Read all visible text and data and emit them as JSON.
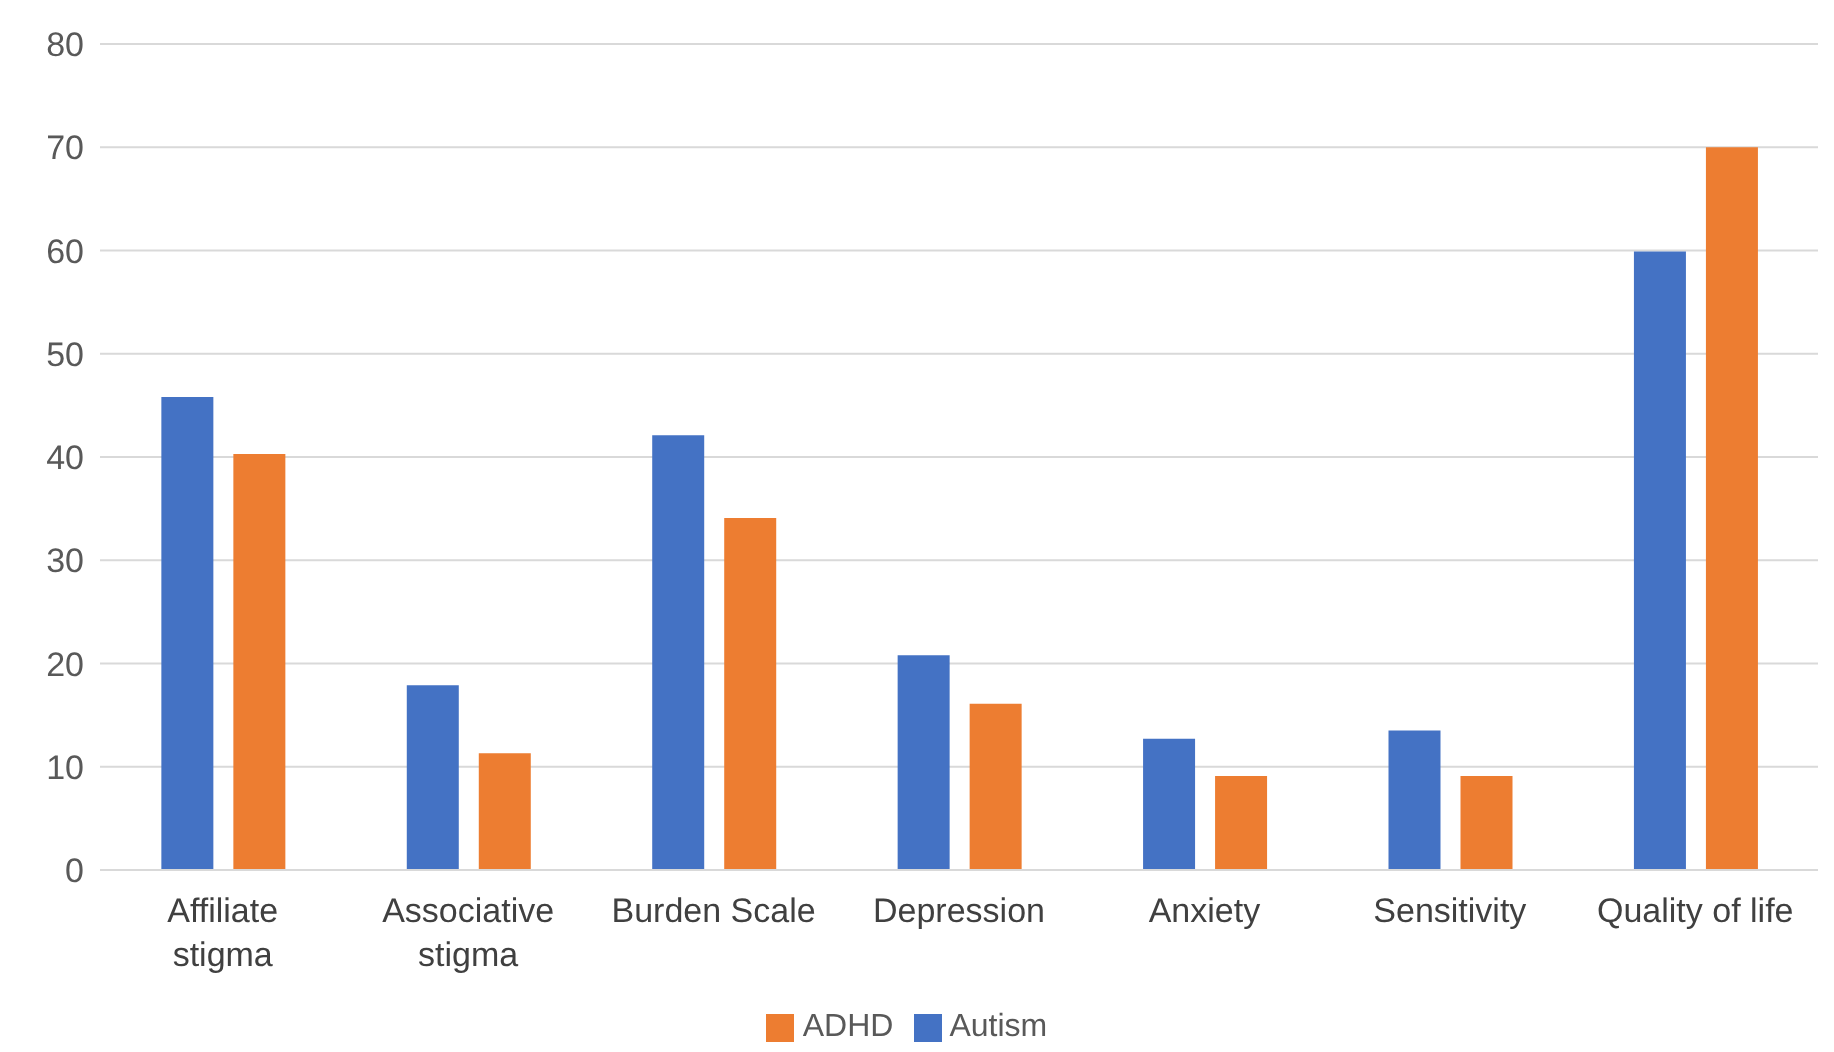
{
  "chart_data": {
    "type": "bar",
    "categories": [
      "Affiliate stigma",
      "Associative stigma",
      "Burden Scale",
      "Depression",
      "Anxiety",
      "Sensitivity",
      "Quality of life"
    ],
    "series": [
      {
        "name": "Autism",
        "color": "#4472c4",
        "values": [
          45.8,
          17.9,
          42.1,
          20.8,
          12.7,
          13.5,
          59.9
        ]
      },
      {
        "name": "ADHD",
        "color": "#ed7d31",
        "values": [
          40.3,
          11.3,
          34.1,
          16.1,
          9.1,
          9.1,
          70
        ]
      }
    ],
    "ylim": [
      0,
      80
    ],
    "yticks": [
      0,
      10,
      20,
      30,
      40,
      50,
      60,
      70,
      80
    ],
    "grid": "y",
    "legend": "bottom"
  }
}
